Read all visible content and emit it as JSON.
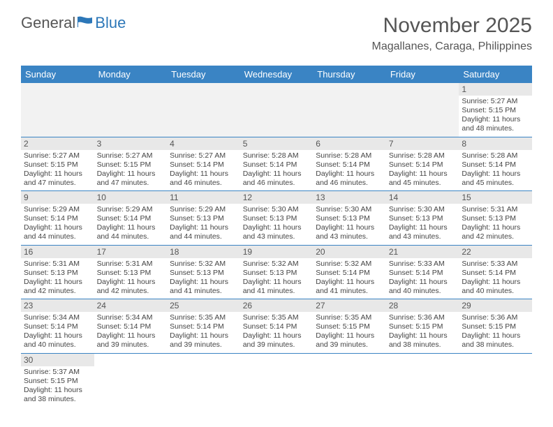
{
  "logo": {
    "text1": "General",
    "text2": "Blue"
  },
  "title": "November 2025",
  "location": "Magallanes, Caraga, Philippines",
  "colors": {
    "header_bg": "#3a84c4",
    "header_text": "#ffffff",
    "daynum_bg": "#e8e8e8",
    "border": "#3a84c4",
    "text": "#444444",
    "title": "#555555"
  },
  "weekdays": [
    "Sunday",
    "Monday",
    "Tuesday",
    "Wednesday",
    "Thursday",
    "Friday",
    "Saturday"
  ],
  "weeks": [
    [
      null,
      null,
      null,
      null,
      null,
      null,
      {
        "n": "1",
        "sr": "5:27 AM",
        "ss": "5:15 PM",
        "d": "11 hours and 48 minutes."
      }
    ],
    [
      {
        "n": "2",
        "sr": "5:27 AM",
        "ss": "5:15 PM",
        "d": "11 hours and 47 minutes."
      },
      {
        "n": "3",
        "sr": "5:27 AM",
        "ss": "5:15 PM",
        "d": "11 hours and 47 minutes."
      },
      {
        "n": "4",
        "sr": "5:27 AM",
        "ss": "5:14 PM",
        "d": "11 hours and 46 minutes."
      },
      {
        "n": "5",
        "sr": "5:28 AM",
        "ss": "5:14 PM",
        "d": "11 hours and 46 minutes."
      },
      {
        "n": "6",
        "sr": "5:28 AM",
        "ss": "5:14 PM",
        "d": "11 hours and 46 minutes."
      },
      {
        "n": "7",
        "sr": "5:28 AM",
        "ss": "5:14 PM",
        "d": "11 hours and 45 minutes."
      },
      {
        "n": "8",
        "sr": "5:28 AM",
        "ss": "5:14 PM",
        "d": "11 hours and 45 minutes."
      }
    ],
    [
      {
        "n": "9",
        "sr": "5:29 AM",
        "ss": "5:14 PM",
        "d": "11 hours and 44 minutes."
      },
      {
        "n": "10",
        "sr": "5:29 AM",
        "ss": "5:14 PM",
        "d": "11 hours and 44 minutes."
      },
      {
        "n": "11",
        "sr": "5:29 AM",
        "ss": "5:13 PM",
        "d": "11 hours and 44 minutes."
      },
      {
        "n": "12",
        "sr": "5:30 AM",
        "ss": "5:13 PM",
        "d": "11 hours and 43 minutes."
      },
      {
        "n": "13",
        "sr": "5:30 AM",
        "ss": "5:13 PM",
        "d": "11 hours and 43 minutes."
      },
      {
        "n": "14",
        "sr": "5:30 AM",
        "ss": "5:13 PM",
        "d": "11 hours and 43 minutes."
      },
      {
        "n": "15",
        "sr": "5:31 AM",
        "ss": "5:13 PM",
        "d": "11 hours and 42 minutes."
      }
    ],
    [
      {
        "n": "16",
        "sr": "5:31 AM",
        "ss": "5:13 PM",
        "d": "11 hours and 42 minutes."
      },
      {
        "n": "17",
        "sr": "5:31 AM",
        "ss": "5:13 PM",
        "d": "11 hours and 42 minutes."
      },
      {
        "n": "18",
        "sr": "5:32 AM",
        "ss": "5:13 PM",
        "d": "11 hours and 41 minutes."
      },
      {
        "n": "19",
        "sr": "5:32 AM",
        "ss": "5:13 PM",
        "d": "11 hours and 41 minutes."
      },
      {
        "n": "20",
        "sr": "5:32 AM",
        "ss": "5:14 PM",
        "d": "11 hours and 41 minutes."
      },
      {
        "n": "21",
        "sr": "5:33 AM",
        "ss": "5:14 PM",
        "d": "11 hours and 40 minutes."
      },
      {
        "n": "22",
        "sr": "5:33 AM",
        "ss": "5:14 PM",
        "d": "11 hours and 40 minutes."
      }
    ],
    [
      {
        "n": "23",
        "sr": "5:34 AM",
        "ss": "5:14 PM",
        "d": "11 hours and 40 minutes."
      },
      {
        "n": "24",
        "sr": "5:34 AM",
        "ss": "5:14 PM",
        "d": "11 hours and 39 minutes."
      },
      {
        "n": "25",
        "sr": "5:35 AM",
        "ss": "5:14 PM",
        "d": "11 hours and 39 minutes."
      },
      {
        "n": "26",
        "sr": "5:35 AM",
        "ss": "5:14 PM",
        "d": "11 hours and 39 minutes."
      },
      {
        "n": "27",
        "sr": "5:35 AM",
        "ss": "5:15 PM",
        "d": "11 hours and 39 minutes."
      },
      {
        "n": "28",
        "sr": "5:36 AM",
        "ss": "5:15 PM",
        "d": "11 hours and 38 minutes."
      },
      {
        "n": "29",
        "sr": "5:36 AM",
        "ss": "5:15 PM",
        "d": "11 hours and 38 minutes."
      }
    ],
    [
      {
        "n": "30",
        "sr": "5:37 AM",
        "ss": "5:15 PM",
        "d": "11 hours and 38 minutes."
      },
      null,
      null,
      null,
      null,
      null,
      null
    ]
  ]
}
